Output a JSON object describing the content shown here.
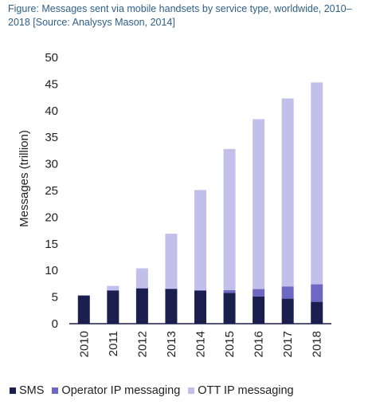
{
  "figure_title": "Figure: Messages sent via mobile handsets by service type, worldwide, 2010–2018  [Source: Analysys Mason, 2014]",
  "chart_data": {
    "type": "bar",
    "stacked": true,
    "title": "Figure: Messages sent via mobile handsets by service type, worldwide, 2010–2018  [Source: Analysys Mason, 2014]",
    "xlabel": "",
    "ylabel": "Messages (trillion)",
    "ylim": [
      0,
      50
    ],
    "yticks": [
      0,
      5,
      10,
      15,
      20,
      25,
      30,
      35,
      40,
      45,
      50
    ],
    "grid": false,
    "legend_position": "bottom",
    "categories": [
      "2010",
      "2011",
      "2012",
      "2013",
      "2014",
      "2015",
      "2016",
      "2017",
      "2018"
    ],
    "series": [
      {
        "name": "SMS",
        "color": "#1b1f4e",
        "values": [
          5.3,
          6.2,
          6.6,
          6.5,
          6.2,
          5.8,
          5.1,
          4.7,
          4.1
        ]
      },
      {
        "name": "Operator IP messaging",
        "color": "#6f67c4",
        "values": [
          0.0,
          0.1,
          0.1,
          0.1,
          0.1,
          0.5,
          1.4,
          2.3,
          3.3
        ]
      },
      {
        "name": "OTT IP messaging",
        "color": "#c2c0ea",
        "values": [
          0.0,
          0.8,
          3.7,
          10.3,
          18.8,
          26.5,
          31.9,
          35.3,
          37.9
        ]
      }
    ]
  }
}
